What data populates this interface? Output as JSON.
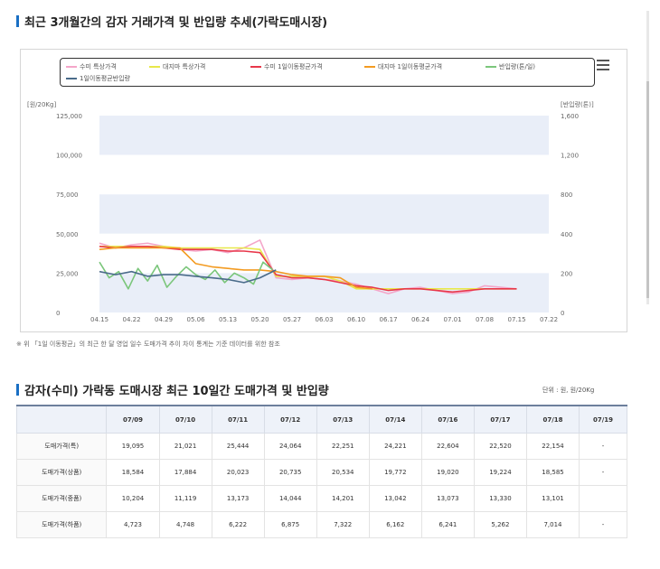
{
  "page": {
    "chart_section_title": "최근 3개월간의 감자 거래가격 및 반입량 추세(가락도매시장)",
    "footnote": "※ 위 「1일 이동평균」의 최근 한 달 영업 일수 도매가격 추이 차이 통계는 기준 데이터를 위한 참조",
    "table_section_title": "감자(수미) 가락동 도매시장 최근 10일간 도매가격 및 반입량",
    "unit_label": "단위 : 원, 원/20Kg"
  },
  "legend": [
    {
      "label": "수미 특상가격",
      "color": "#f4a6c9"
    },
    {
      "label": "대지마 특상가격",
      "color": "#e8e84a"
    },
    {
      "label": "수미 1일이동평균가격",
      "color": "#e8374a"
    },
    {
      "label": "대지마 1일이동평균가격",
      "color": "#f39b21"
    },
    {
      "label": "반입량(톤/일)",
      "color": "#7bc67b"
    },
    {
      "label": "1일이동평균반입량",
      "color": "#4a6b8a"
    }
  ],
  "chart_data": {
    "type": "line",
    "title": "최근 3개월간의 감자 거래가격 및 반입량 추세(가락도매시장)",
    "y_left_label": "[원/20Kg]",
    "y_right_label": "[반입량(톤)]",
    "y_left_ticks": [
      "125,000",
      "100,000",
      "75,000",
      "50,000",
      "25,000",
      "0"
    ],
    "y_right_ticks": [
      "1,600",
      "1,200",
      "800",
      "400",
      "200",
      "0"
    ],
    "x_ticks": [
      "04.15",
      "04.22",
      "04.29",
      "05.06",
      "05.13",
      "05.20",
      "05.27",
      "06.03",
      "06.10",
      "06.17",
      "06.24",
      "07.01",
      "07.08",
      "07.15",
      "07.22"
    ],
    "ylim_left": [
      0,
      125000
    ],
    "series": [
      {
        "name": "수미 특상가격",
        "color": "#f4a6c9",
        "y": "left",
        "x": [
          1.0,
          1.5,
          2.0,
          2.5,
          3.0,
          3.5,
          4.0,
          4.5,
          5.0,
          5.5,
          6.0,
          6.5,
          7.0,
          7.5,
          8.0,
          8.5,
          9.0,
          9.5,
          10.0,
          10.5,
          11.0,
          11.5,
          12.0,
          12.5,
          13.0,
          13.5,
          14.0
        ],
        "values": [
          44000,
          41000,
          43000,
          44000,
          42000,
          40000,
          39000,
          40000,
          38000,
          41000,
          46000,
          22000,
          21000,
          22000,
          21000,
          20000,
          18000,
          15000,
          12000,
          15000,
          16000,
          14000,
          12000,
          13000,
          17000,
          16000,
          15000
        ]
      },
      {
        "name": "대지마 특상가격",
        "color": "#e8e84a",
        "y": "left",
        "x": [
          1.0,
          1.5,
          2.0,
          2.5,
          3.0,
          3.5,
          4.0,
          4.5,
          5.0,
          5.5,
          6.0,
          6.5,
          7.0,
          7.5,
          8.0,
          8.5,
          9.0,
          9.5,
          10.0,
          10.5,
          11.0,
          11.5,
          12.0,
          12.5,
          13.0,
          13.5,
          14.0
        ],
        "values": [
          42000,
          42000,
          42000,
          42000,
          42000,
          41000,
          41000,
          41000,
          41000,
          41000,
          40000,
          23000,
          23000,
          23000,
          23000,
          20000,
          15000,
          15000,
          15000,
          15000,
          15000,
          15000,
          15000,
          15000,
          15000,
          15000,
          15000
        ]
      },
      {
        "name": "수미 1일이동평균가격",
        "color": "#e8374a",
        "y": "left",
        "x": [
          1.0,
          1.5,
          2.0,
          2.5,
          3.0,
          3.5,
          4.0,
          4.5,
          5.0,
          5.5,
          6.0,
          6.5,
          7.0,
          7.5,
          8.0,
          8.5,
          9.0,
          9.5,
          10.0,
          10.5,
          11.0,
          11.5,
          12.0,
          12.5,
          13.0,
          13.5,
          14.0
        ],
        "values": [
          42000,
          41000,
          42000,
          42000,
          41000,
          40000,
          40000,
          40000,
          39000,
          39000,
          38000,
          24000,
          22000,
          22000,
          21000,
          19000,
          17000,
          16000,
          14000,
          15000,
          15000,
          14000,
          13000,
          14000,
          15000,
          15000,
          15000
        ]
      },
      {
        "name": "대지마 1일이동평균가격",
        "color": "#f39b21",
        "y": "left",
        "x": [
          1.0,
          1.5,
          2.0,
          2.5,
          3.0,
          3.5,
          4.0,
          4.5,
          5.0,
          5.5,
          6.0,
          6.5,
          7.0,
          7.5,
          8.0,
          8.5,
          9.0,
          9.5
        ],
        "values": [
          40000,
          41000,
          41000,
          41000,
          41000,
          41000,
          31000,
          29000,
          28000,
          27000,
          27000,
          26000,
          24000,
          23000,
          23000,
          22000,
          16000,
          15000
        ]
      },
      {
        "name": "반입량(톤/일)",
        "color": "#7bc67b",
        "y": "left",
        "x": [
          1.0,
          1.3,
          1.6,
          1.9,
          2.2,
          2.5,
          2.8,
          3.1,
          3.4,
          3.7,
          4.0,
          4.3,
          4.6,
          4.9,
          5.2,
          5.5,
          5.8,
          6.1,
          6.4
        ],
        "values": [
          32000,
          22000,
          26000,
          15000,
          28000,
          20000,
          30000,
          16000,
          23000,
          29000,
          24000,
          21000,
          27000,
          19000,
          25000,
          22000,
          18000,
          32000,
          27000
        ]
      },
      {
        "name": "1일이동평균반입량",
        "color": "#4a6b8a",
        "y": "left",
        "x": [
          1.0,
          1.5,
          2.0,
          2.5,
          3.0,
          3.5,
          4.0,
          4.5,
          5.0,
          5.5,
          6.0,
          6.5
        ],
        "values": [
          26000,
          24000,
          26000,
          23000,
          24000,
          24000,
          23000,
          22000,
          21000,
          19000,
          22000,
          27000
        ]
      }
    ]
  },
  "table": {
    "headers": [
      "",
      "07/09",
      "07/10",
      "07/11",
      "07/12",
      "07/13",
      "07/14",
      "07/16",
      "07/17",
      "07/18",
      "07/19"
    ],
    "rows": [
      {
        "label": "도매가격(특)",
        "values": [
          "19,095",
          "21,021",
          "25,444",
          "24,064",
          "22,251",
          "24,221",
          "22,604",
          "22,520",
          "22,154",
          "-"
        ]
      },
      {
        "label": "도매가격(상품)",
        "values": [
          "18,584",
          "17,884",
          "20,023",
          "20,735",
          "20,534",
          "19,772",
          "19,020",
          "19,224",
          "18,585",
          "-"
        ]
      },
      {
        "label": "도매가격(중품)",
        "values": [
          "10,204",
          "11,119",
          "13,173",
          "14,044",
          "14,201",
          "13,042",
          "13,073",
          "13,330",
          "13,101",
          ""
        ]
      },
      {
        "label": "도매가격(하품)",
        "values": [
          "4,723",
          "4,748",
          "6,222",
          "6,875",
          "7,322",
          "6,162",
          "6,241",
          "5,262",
          "7,014",
          "-"
        ]
      }
    ]
  }
}
